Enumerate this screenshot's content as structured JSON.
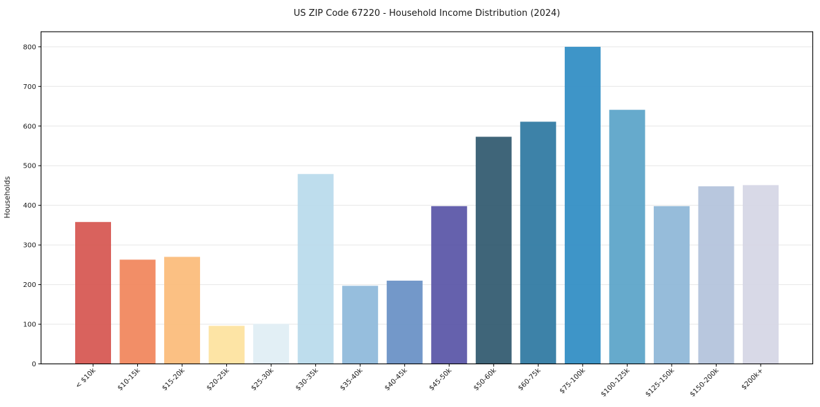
{
  "chart_data": {
    "type": "bar",
    "title": "US ZIP Code 67220 - Household Income Distribution (2024)",
    "xlabel": "",
    "ylabel": "Households",
    "categories": [
      "< $10k",
      "$10-15k",
      "$15-20k",
      "$20-25k",
      "$25-30k",
      "$30-35k",
      "$35-40k",
      "$40-45k",
      "$45-50k",
      "$50-60k",
      "$60-75k",
      "$75-100k",
      "$100-125k",
      "$125-150k",
      "$150-200k",
      "$200k+"
    ],
    "values": [
      358,
      263,
      270,
      96,
      101,
      479,
      197,
      210,
      398,
      573,
      611,
      800,
      641,
      398,
      448,
      451
    ],
    "bar_colors": [
      "#d75a54",
      "#f1885f",
      "#fbbd7c",
      "#fde3a0",
      "#e0eef4",
      "#badbec",
      "#90badb",
      "#6b92c6",
      "#5d59a9",
      "#355d72",
      "#337ba3",
      "#348fc5",
      "#5ea5c9",
      "#90b8d8",
      "#b4c4dc",
      "#d6d7e6"
    ],
    "yticks": [
      0,
      100,
      200,
      300,
      400,
      500,
      600,
      700,
      800
    ],
    "ylim": [
      0,
      838
    ],
    "grid": "horizontal-y-only",
    "legend_position": "none",
    "background_color": "#ffffff",
    "text_color": "#1a1a1a",
    "grid_color": "#e6e6e6",
    "spine_color": "#000000"
  }
}
